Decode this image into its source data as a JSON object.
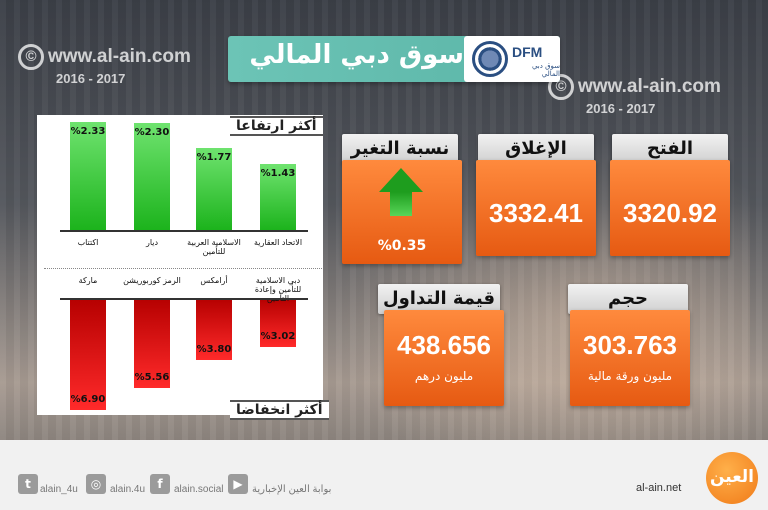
{
  "watermark": {
    "site": "www.al-ain.com",
    "years": "2016 - 2017"
  },
  "header": {
    "title": "سوق دبي المالي",
    "logo_text": "DFM",
    "logo_sub": "سوق دبي المالي"
  },
  "top_gainers": {
    "label": "أكثر ارتفاعا",
    "items": [
      {
        "name": "اكتتاب",
        "value": "%2.33",
        "pct": 2.33
      },
      {
        "name": "ديار",
        "value": "%2.30",
        "pct": 2.3
      },
      {
        "name": "الاسلامية العربية للتأمين",
        "value": "%1.77",
        "pct": 1.77
      },
      {
        "name": "الاتحاد العقارية",
        "value": "%1.43",
        "pct": 1.43
      }
    ]
  },
  "top_losers": {
    "label": "أكثر انخفاضا",
    "items": [
      {
        "name": "ماركة",
        "value": "%6.90",
        "pct": 6.9
      },
      {
        "name": "الرمز كوربوريشن",
        "value": "%5.56",
        "pct": 5.56
      },
      {
        "name": "أرامكس",
        "value": "%3.80",
        "pct": 3.8
      },
      {
        "name": "دبي الاسلامية للتأمين وإعادة التأمين",
        "value": "%3.02",
        "pct": 3.02
      }
    ]
  },
  "stats": {
    "open": {
      "label": "الفتح",
      "value": "3320.92"
    },
    "close": {
      "label": "الإغلاق",
      "value": "3332.41"
    },
    "change": {
      "label": "نسبة التغير",
      "value": "%0.35"
    },
    "volume": {
      "label": "حجم التداولات",
      "value": "303.763",
      "unit": "مليون ورقة مالية"
    },
    "turnover": {
      "label": "قيمة التداول",
      "value": "438.656",
      "unit": "مليون درهم"
    }
  },
  "footer": {
    "twitter": "alain_4u",
    "instagram": "alain.4u",
    "facebook": "alain.social",
    "youtube": "بوابة العين الإخبارية",
    "site": "al-ain.net",
    "logo": "العين"
  }
}
